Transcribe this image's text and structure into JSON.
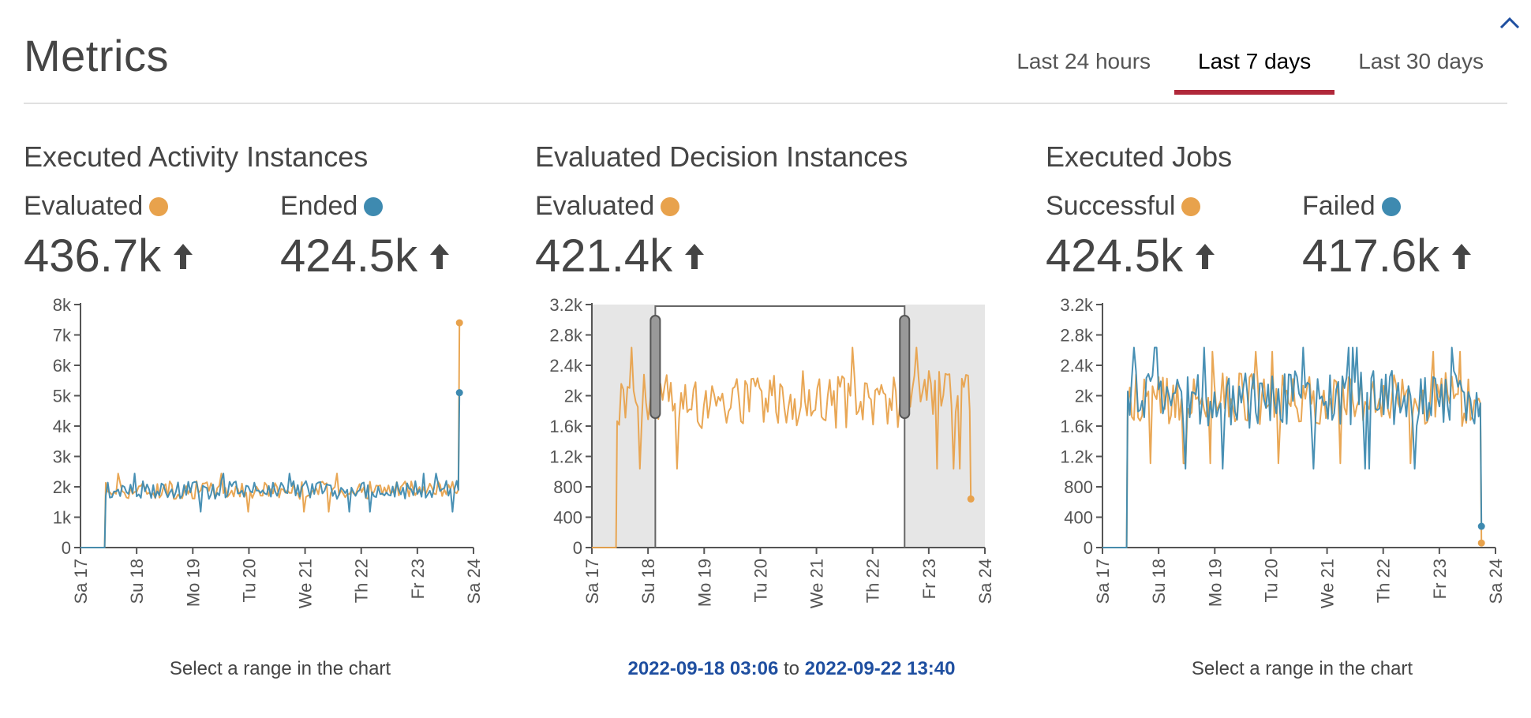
{
  "header": {
    "title": "Metrics",
    "tabs": [
      {
        "label": "Last 24 hours",
        "active": false
      },
      {
        "label": "Last 7 days",
        "active": true
      },
      {
        "label": "Last 30 days",
        "active": false
      }
    ]
  },
  "colors": {
    "orange": "#E8A24C",
    "blue": "#3E8AB0",
    "accent": "#B0283A",
    "link": "#1F4FA0"
  },
  "sections": [
    {
      "title": "Executed Activity Instances",
      "stats": [
        {
          "label": "Evaluated",
          "value": "436.7k",
          "color": "orange"
        },
        {
          "label": "Ended",
          "value": "424.5k",
          "color": "blue"
        }
      ],
      "caption": "Select a range in the chart"
    },
    {
      "title": "Evaluated Decision Instances",
      "stats": [
        {
          "label": "Evaluated",
          "value": "421.4k",
          "color": "orange"
        }
      ],
      "selection": {
        "from": "2022-09-18 03:06",
        "separator": "to",
        "to": "2022-09-22 13:40"
      }
    },
    {
      "title": "Executed Jobs",
      "stats": [
        {
          "label": "Successful",
          "value": "424.5k",
          "color": "orange"
        },
        {
          "label": "Failed",
          "value": "417.6k",
          "color": "blue"
        }
      ],
      "caption": "Select a range in the chart"
    }
  ],
  "chart_data": [
    {
      "type": "line",
      "x_tick_labels": [
        "Sa 17",
        "Su 18",
        "Mo 19",
        "Tu 20",
        "We 21",
        "Th 22",
        "Fr 23",
        "Sa 24"
      ],
      "x_range": [
        0,
        7
      ],
      "y_tick_labels": [
        "0",
        "1k",
        "2k",
        "3k",
        "4k",
        "5k",
        "6k",
        "7k",
        "8k"
      ],
      "ylim": [
        0,
        8000
      ],
      "series": [
        {
          "name": "Evaluated",
          "color": "orange",
          "start": 0.45,
          "end": 6.7,
          "base": 1900,
          "noise": 300,
          "last": 7400,
          "pre_last": 1900
        },
        {
          "name": "Ended",
          "color": "blue",
          "start": 0.45,
          "end": 6.7,
          "base": 1900,
          "noise": 300,
          "last": 5100,
          "pre_last": 1900
        }
      ]
    },
    {
      "type": "line",
      "x_tick_labels": [
        "Sa 17",
        "Su 18",
        "Mo 19",
        "Tu 20",
        "We 21",
        "Th 22",
        "Fr 23",
        "Sa 24"
      ],
      "x_range": [
        0,
        7
      ],
      "y_tick_labels": [
        "0",
        "400",
        "800",
        "1.2k",
        "1.6k",
        "2k",
        "2.4k",
        "2.8k",
        "3.2k"
      ],
      "ylim": [
        0,
        3200
      ],
      "selection_range": [
        1.13,
        5.57
      ],
      "series": [
        {
          "name": "Evaluated",
          "color": "orange",
          "start": 0.45,
          "end": 6.7,
          "base": 1950,
          "noise": 380,
          "last": 640,
          "pre_last": 1800
        }
      ]
    },
    {
      "type": "line",
      "x_tick_labels": [
        "Sa 17",
        "Su 18",
        "Mo 19",
        "Tu 20",
        "We 21",
        "Th 22",
        "Fr 23",
        "Sa 24"
      ],
      "x_range": [
        0,
        7
      ],
      "y_tick_labels": [
        "0",
        "400",
        "800",
        "1.2k",
        "1.6k",
        "2k",
        "2.4k",
        "2.8k",
        "3.2k"
      ],
      "ylim": [
        0,
        3200
      ],
      "series": [
        {
          "name": "Successful",
          "color": "orange",
          "start": 0.45,
          "end": 6.7,
          "base": 1950,
          "noise": 350,
          "last": 60,
          "pre_last": 1900
        },
        {
          "name": "Failed",
          "color": "blue",
          "start": 0.45,
          "end": 6.7,
          "base": 1950,
          "noise": 380,
          "last": 280,
          "pre_last": 1900
        }
      ]
    }
  ]
}
